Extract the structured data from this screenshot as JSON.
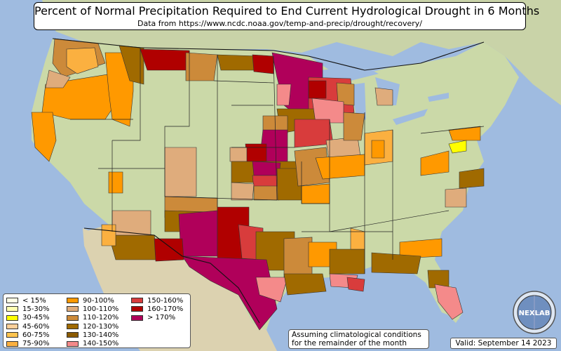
{
  "title": "Percent of Normal Precipitation Required to End Current Hydrological Drought in 6 Months",
  "subtitle": "Data from https://www.ncdc.noaa.gov/temp-and-precip/drought/recovery/",
  "legend": [
    {
      "label": "< 15%",
      "color": "#ffffe5"
    },
    {
      "label": "15-30%",
      "color": "#ffffb2"
    },
    {
      "label": "30-45%",
      "color": "#ffff00"
    },
    {
      "label": "45-60%",
      "color": "#fdd09a"
    },
    {
      "label": "60-75%",
      "color": "#fec44f"
    },
    {
      "label": "75-90%",
      "color": "#fbb040"
    },
    {
      "label": "90-100%",
      "color": "#ff9900"
    },
    {
      "label": "100-110%",
      "color": "#dfac7c"
    },
    {
      "label": "110-120%",
      "color": "#cc8a3a"
    },
    {
      "label": "120-130%",
      "color": "#a06a00"
    },
    {
      "label": "130-140%",
      "color": "#8a5a00"
    },
    {
      "label": "140-150%",
      "color": "#f48a8a"
    },
    {
      "label": "150-160%",
      "color": "#d83c3c"
    },
    {
      "label": "160-170%",
      "color": "#b00000"
    },
    {
      "label": "> 170%",
      "color": "#b0005a"
    }
  ],
  "note_line1": "Assuming climatological conditions",
  "note_line2": "for the remainder of the month",
  "valid": "Valid: September 14 2023",
  "logo_text": "NEXLAB",
  "colors": {
    "ocean": "#9fbbe0",
    "land": "#c9d8a6",
    "mexico": "#dcd2b0"
  }
}
